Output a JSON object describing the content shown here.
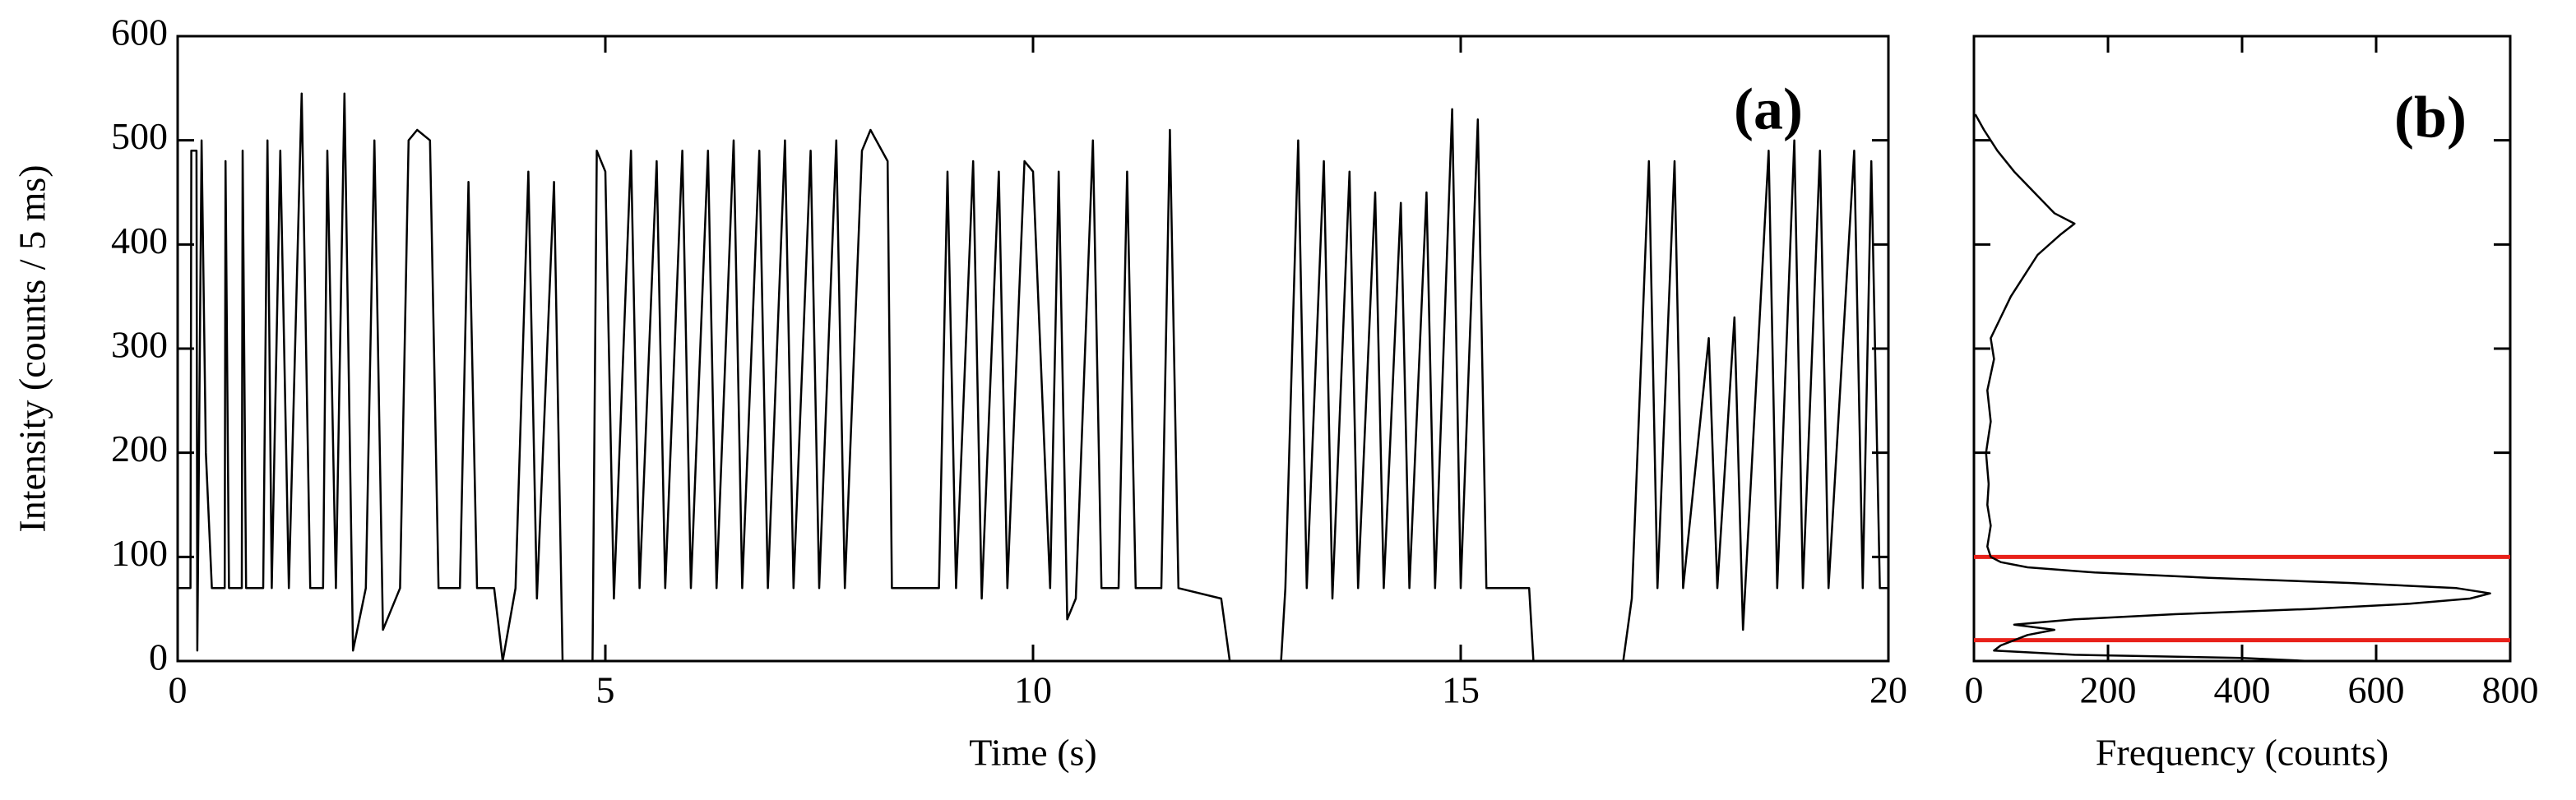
{
  "chart_data": [
    {
      "type": "line",
      "annotation": "(a)",
      "x_label": "Time (s)",
      "y_label": "Intensity (counts / 5 ms)",
      "xlim": [
        0,
        20
      ],
      "xticks": [
        0,
        5,
        10,
        15,
        20
      ],
      "ylim": [
        0,
        600
      ],
      "yticks": [
        0,
        100,
        200,
        300,
        400,
        500,
        600
      ],
      "x": [
        0,
        0.15,
        0.16,
        0.22,
        0.23,
        0.28,
        0.33,
        0.4,
        0.55,
        0.56,
        0.6,
        0.75,
        0.76,
        0.8,
        1.0,
        1.05,
        1.1,
        1.2,
        1.3,
        1.45,
        1.55,
        1.7,
        1.75,
        1.85,
        1.95,
        2.05,
        2.2,
        2.3,
        2.4,
        2.6,
        2.7,
        2.8,
        2.95,
        3.05,
        3.3,
        3.4,
        3.5,
        3.7,
        3.8,
        3.95,
        4.1,
        4.2,
        4.4,
        4.5,
        4.85,
        4.9,
        5.0,
        5.1,
        5.3,
        5.4,
        5.6,
        5.7,
        5.9,
        6.0,
        6.2,
        6.3,
        6.5,
        6.6,
        6.8,
        6.9,
        7.1,
        7.2,
        7.4,
        7.5,
        7.7,
        7.8,
        8.0,
        8.1,
        8.3,
        8.35,
        8.9,
        9.0,
        9.1,
        9.3,
        9.4,
        9.6,
        9.7,
        9.9,
        10.0,
        10.2,
        10.3,
        10.4,
        10.5,
        10.7,
        10.8,
        11.0,
        11.1,
        11.2,
        11.5,
        11.6,
        11.7,
        12.2,
        12.3,
        12.9,
        12.95,
        13.1,
        13.2,
        13.4,
        13.5,
        13.7,
        13.8,
        14.0,
        14.1,
        14.3,
        14.4,
        14.6,
        14.7,
        14.9,
        15.0,
        15.2,
        15.3,
        15.8,
        15.85,
        16.9,
        17.0,
        17.2,
        17.3,
        17.5,
        17.6,
        17.9,
        18.0,
        18.2,
        18.3,
        18.6,
        18.7,
        18.9,
        19.0,
        19.2,
        19.3,
        19.6,
        19.7,
        19.8,
        19.9,
        20.0
      ],
      "series": [
        {
          "color": "#000000",
          "values": [
            70,
            70,
            490,
            490,
            10,
            500,
            200,
            70,
            70,
            480,
            70,
            70,
            490,
            70,
            70,
            500,
            70,
            490,
            70,
            545,
            70,
            70,
            490,
            70,
            545,
            10,
            70,
            500,
            30,
            70,
            500,
            510,
            500,
            70,
            70,
            460,
            70,
            70,
            0,
            70,
            470,
            60,
            460,
            0,
            0,
            490,
            470,
            60,
            490,
            70,
            480,
            70,
            490,
            70,
            490,
            70,
            500,
            70,
            490,
            70,
            500,
            70,
            490,
            70,
            500,
            70,
            490,
            510,
            480,
            70,
            70,
            470,
            70,
            480,
            60,
            470,
            70,
            480,
            470,
            70,
            470,
            40,
            60,
            500,
            70,
            70,
            470,
            70,
            70,
            510,
            70,
            60,
            0,
            0,
            70,
            500,
            70,
            480,
            60,
            470,
            70,
            450,
            70,
            440,
            70,
            450,
            70,
            530,
            70,
            520,
            70,
            70,
            0,
            0,
            60,
            480,
            70,
            480,
            70,
            310,
            70,
            330,
            30,
            490,
            70,
            500,
            70,
            490,
            70,
            490,
            70,
            480,
            70,
            70
          ]
        }
      ]
    },
    {
      "type": "line",
      "annotation": "(b)",
      "x_label": "Frequency (counts)",
      "xlim": [
        0,
        800
      ],
      "xticks": [
        0,
        200,
        400,
        600,
        800
      ],
      "ylim": [
        0,
        600
      ],
      "yticks": [
        0,
        100,
        200,
        300,
        400,
        500,
        600
      ],
      "hlines": [
        100,
        20
      ],
      "hline_color": "#e8211a",
      "x": [
        500,
        400,
        150,
        30,
        40,
        60,
        80,
        120,
        60,
        150,
        300,
        500,
        650,
        740,
        770,
        720,
        560,
        350,
        180,
        80,
        40,
        25,
        20,
        25,
        20,
        22,
        18,
        25,
        20,
        30,
        25,
        40,
        55,
        75,
        95,
        130,
        150,
        120,
        90,
        60,
        35,
        15,
        2
      ],
      "series": [
        {
          "color": "#000000",
          "values": [
            0,
            3,
            6,
            10,
            15,
            20,
            25,
            30,
            35,
            40,
            45,
            50,
            55,
            60,
            65,
            70,
            75,
            80,
            85,
            90,
            95,
            100,
            110,
            130,
            150,
            170,
            200,
            230,
            260,
            290,
            310,
            330,
            350,
            370,
            390,
            410,
            420,
            430,
            450,
            470,
            490,
            510,
            525
          ]
        }
      ]
    }
  ]
}
